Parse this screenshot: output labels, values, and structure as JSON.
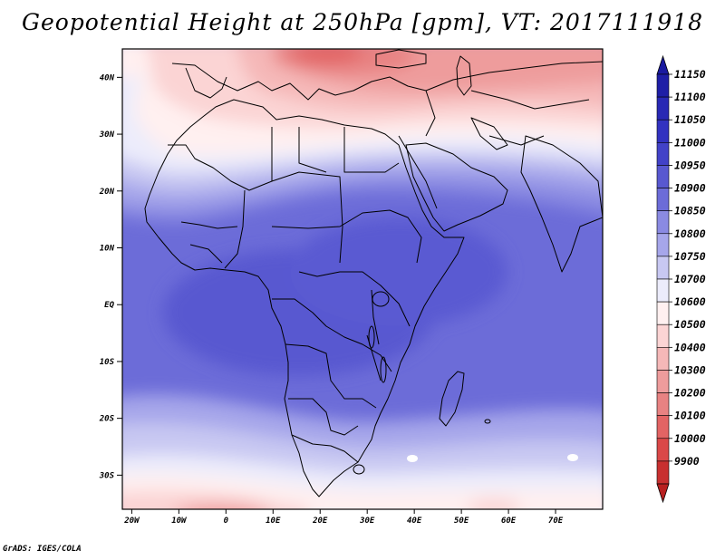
{
  "title": "Geopotential Height at 250hPa [gpm], VT: 2017111918",
  "credit": "GrADS: IGES/COLA",
  "map": {
    "region": "Africa",
    "lon_range": [
      -22,
      80
    ],
    "lat_range": [
      -36,
      45
    ],
    "lat_ticks": [
      {
        "value": 40,
        "label": "40N"
      },
      {
        "value": 30,
        "label": "30N"
      },
      {
        "value": 20,
        "label": "20N"
      },
      {
        "value": 10,
        "label": "10N"
      },
      {
        "value": 0,
        "label": "EQ"
      },
      {
        "value": -10,
        "label": "10S"
      },
      {
        "value": -20,
        "label": "20S"
      },
      {
        "value": -30,
        "label": "30S"
      }
    ],
    "lon_ticks": [
      {
        "value": -20,
        "label": "20W"
      },
      {
        "value": -10,
        "label": "10W"
      },
      {
        "value": 0,
        "label": "0"
      },
      {
        "value": 10,
        "label": "10E"
      },
      {
        "value": 20,
        "label": "20E"
      },
      {
        "value": 30,
        "label": "30E"
      },
      {
        "value": 40,
        "label": "40E"
      },
      {
        "value": 50,
        "label": "50E"
      },
      {
        "value": 60,
        "label": "60E"
      },
      {
        "value": 70,
        "label": "70E"
      }
    ]
  },
  "colorbar": {
    "levels": [
      {
        "label": "11150",
        "color": "#1e1ea6"
      },
      {
        "label": "11100",
        "color": "#2828b4"
      },
      {
        "label": "11050",
        "color": "#3232c0"
      },
      {
        "label": "11000",
        "color": "#4242c8"
      },
      {
        "label": "10950",
        "color": "#5858d0"
      },
      {
        "label": "10900",
        "color": "#6c6cd8"
      },
      {
        "label": "10850",
        "color": "#8a8ae2"
      },
      {
        "label": "10800",
        "color": "#a6a6ea"
      },
      {
        "label": "10750",
        "color": "#c8c8f2"
      },
      {
        "label": "10700",
        "color": "#ececfb"
      },
      {
        "label": "10600",
        "color": "#fff0f0"
      },
      {
        "label": "10500",
        "color": "#fbd4d4"
      },
      {
        "label": "10400",
        "color": "#f5b8b8"
      },
      {
        "label": "10300",
        "color": "#ee9c9c"
      },
      {
        "label": "10200",
        "color": "#e88282"
      },
      {
        "label": "10100",
        "color": "#e26464"
      },
      {
        "label": "10000",
        "color": "#da4848"
      },
      {
        "label": "9900",
        "color": "#c83030"
      }
    ],
    "top_color": "#1a1aa0",
    "bottom_color": "#b82020"
  }
}
